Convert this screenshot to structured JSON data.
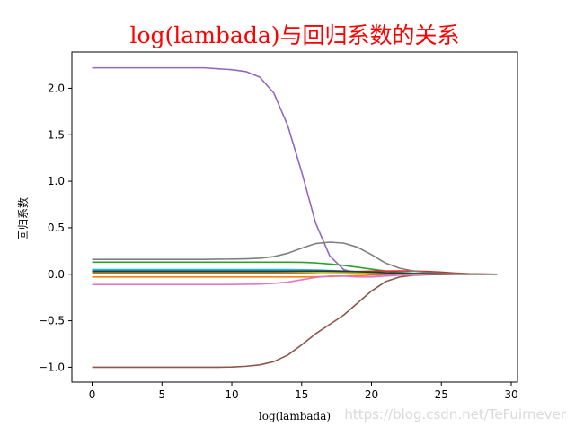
{
  "chart_data": {
    "type": "line",
    "title": "log(lambada)与回归系数的关系",
    "xlabel": "log(lambada)",
    "ylabel": "回归系数",
    "xlim": [
      -1.45,
      30.45
    ],
    "ylim": [
      -1.16,
      2.39
    ],
    "x_ticks": [
      0,
      5,
      10,
      15,
      20,
      25,
      30
    ],
    "x_tick_labels": [
      "0",
      "5",
      "10",
      "15",
      "20",
      "25",
      "30"
    ],
    "y_ticks": [
      -1.0,
      -0.5,
      0.0,
      0.5,
      1.0,
      1.5,
      2.0
    ],
    "y_tick_labels": [
      "−1.0",
      "−0.5",
      "0.0",
      "0.5",
      "1.0",
      "1.5",
      "2.0"
    ],
    "grid": false,
    "legend": false,
    "x": [
      0,
      1,
      2,
      3,
      4,
      5,
      6,
      7,
      8,
      9,
      10,
      11,
      12,
      13,
      14,
      15,
      16,
      17,
      18,
      19,
      20,
      21,
      22,
      23,
      24,
      25,
      26,
      27,
      28,
      29
    ],
    "series": [
      {
        "color": "#1f77b4",
        "values": [
          0.04,
          0.04,
          0.04,
          0.04,
          0.04,
          0.04,
          0.04,
          0.04,
          0.04,
          0.04,
          0.04,
          0.04,
          0.04,
          0.04,
          0.04,
          0.04,
          0.038,
          0.035,
          0.03,
          0.025,
          0.02,
          0.015,
          0.01,
          0.007,
          0.004,
          0.002,
          0.001,
          0.0,
          0.0,
          0.0
        ]
      },
      {
        "color": "#ff7f0e",
        "values": [
          -0.03,
          -0.03,
          -0.03,
          -0.03,
          -0.03,
          -0.03,
          -0.03,
          -0.03,
          -0.03,
          -0.03,
          -0.03,
          -0.03,
          -0.03,
          -0.03,
          -0.03,
          -0.03,
          -0.028,
          -0.025,
          -0.02,
          -0.015,
          -0.01,
          -0.007,
          -0.005,
          -0.003,
          -0.002,
          -0.001,
          0.0,
          0.0,
          0.0,
          0.0
        ]
      },
      {
        "color": "#2ca02c",
        "values": [
          0.13,
          0.13,
          0.13,
          0.13,
          0.13,
          0.13,
          0.13,
          0.13,
          0.13,
          0.13,
          0.13,
          0.13,
          0.13,
          0.13,
          0.13,
          0.128,
          0.122,
          0.11,
          0.095,
          0.075,
          0.055,
          0.035,
          0.02,
          0.012,
          0.007,
          0.004,
          0.002,
          0.001,
          0.0,
          0.0
        ]
      },
      {
        "color": "#d62728",
        "values": [
          0.01,
          0.01,
          0.01,
          0.01,
          0.01,
          0.01,
          0.01,
          0.01,
          0.01,
          0.01,
          0.01,
          0.01,
          0.01,
          0.01,
          0.012,
          0.015,
          0.018,
          0.022,
          0.026,
          0.03,
          0.033,
          0.035,
          0.036,
          0.035,
          0.03,
          0.022,
          0.012,
          0.005,
          0.002,
          0.0
        ]
      },
      {
        "color": "#9467bd",
        "values": [
          2.22,
          2.22,
          2.22,
          2.22,
          2.22,
          2.22,
          2.22,
          2.22,
          2.22,
          2.21,
          2.2,
          2.18,
          2.12,
          1.95,
          1.6,
          1.1,
          0.55,
          0.2,
          0.05,
          0.01,
          0.0,
          0.0,
          0.0,
          0.0,
          0.0,
          0.0,
          0.0,
          0.0,
          0.0,
          0.0
        ]
      },
      {
        "color": "#8c564b",
        "values": [
          -1.0,
          -1.0,
          -1.0,
          -1.0,
          -1.0,
          -1.0,
          -1.0,
          -1.0,
          -1.0,
          -1.0,
          -0.998,
          -0.99,
          -0.975,
          -0.94,
          -0.87,
          -0.76,
          -0.64,
          -0.54,
          -0.44,
          -0.31,
          -0.18,
          -0.08,
          -0.03,
          -0.01,
          -0.005,
          -0.002,
          0.0,
          0.0,
          0.0,
          0.0
        ]
      },
      {
        "color": "#e377c2",
        "values": [
          -0.11,
          -0.11,
          -0.11,
          -0.11,
          -0.11,
          -0.11,
          -0.11,
          -0.11,
          -0.11,
          -0.11,
          -0.11,
          -0.108,
          -0.105,
          -0.098,
          -0.085,
          -0.06,
          -0.035,
          -0.02,
          -0.02,
          -0.03,
          -0.03,
          -0.02,
          -0.01,
          -0.005,
          -0.002,
          0.0,
          0.0,
          0.0,
          0.0,
          0.0
        ]
      },
      {
        "color": "#7f7f7f",
        "values": [
          0.16,
          0.16,
          0.16,
          0.16,
          0.16,
          0.16,
          0.16,
          0.16,
          0.16,
          0.162,
          0.163,
          0.166,
          0.172,
          0.19,
          0.225,
          0.28,
          0.33,
          0.345,
          0.335,
          0.29,
          0.21,
          0.12,
          0.065,
          0.035,
          0.018,
          0.01,
          0.005,
          0.002,
          0.001,
          0.0
        ]
      },
      {
        "color": "#bcbd22",
        "values": [
          0.02,
          0.02,
          0.02,
          0.02,
          0.02,
          0.02,
          0.02,
          0.02,
          0.02,
          0.02,
          0.02,
          0.02,
          0.02,
          0.02,
          0.02,
          0.02,
          0.02,
          0.018,
          0.016,
          0.014,
          0.012,
          0.01,
          0.008,
          0.006,
          0.004,
          0.003,
          0.002,
          0.001,
          0.0,
          0.0
        ]
      },
      {
        "color": "#17becf",
        "values": [
          0.05,
          0.05,
          0.05,
          0.05,
          0.05,
          0.05,
          0.05,
          0.05,
          0.05,
          0.05,
          0.05,
          0.05,
          0.05,
          0.05,
          0.05,
          0.048,
          0.045,
          0.04,
          0.034,
          0.028,
          0.022,
          0.016,
          0.011,
          0.007,
          0.004,
          0.002,
          0.001,
          0.0,
          0.0,
          0.0
        ]
      },
      {
        "color": "#333333",
        "values": [
          0.03,
          0.03,
          0.03,
          0.03,
          0.03,
          0.03,
          0.03,
          0.03,
          0.03,
          0.03,
          0.03,
          0.03,
          0.03,
          0.03,
          0.031,
          0.033,
          0.034,
          0.034,
          0.032,
          0.028,
          0.022,
          0.016,
          0.011,
          0.007,
          0.004,
          0.002,
          0.001,
          0.0,
          0.0,
          0.0
        ]
      }
    ]
  },
  "colors": {
    "title": "#ff0000",
    "axis": "#000000",
    "watermark": "#d9d9d9"
  },
  "watermark": "https://blog.csdn.net/TeFuirnever"
}
